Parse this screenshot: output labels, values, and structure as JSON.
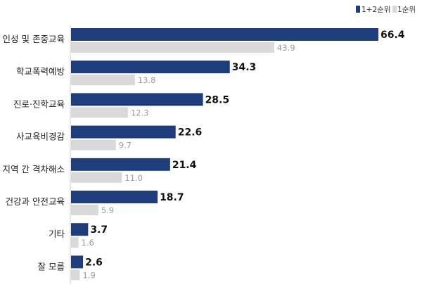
{
  "chart_data": {
    "type": "bar",
    "orientation": "horizontal",
    "categories": [
      "인성 및 존중교육",
      "학교폭력예방",
      "진로·진학교육",
      "사교육비경감",
      "지역 간 격차해소",
      "건강과 안전교육",
      "기타",
      "잘 모름"
    ],
    "series": [
      {
        "name": "1+2순위",
        "color": "#1f3d7a",
        "values": [
          66.4,
          34.3,
          28.5,
          22.6,
          21.4,
          18.7,
          3.7,
          2.6
        ],
        "labels": [
          "66.4",
          "34.3",
          "28.5",
          "22.6",
          "21.4",
          "18.7",
          "3.7",
          "2.6"
        ]
      },
      {
        "name": "1순위",
        "color": "#d9d9d9",
        "values": [
          43.9,
          13.8,
          12.3,
          9.7,
          11.0,
          5.9,
          1.6,
          1.9
        ],
        "labels": [
          "43.9",
          "13.8",
          "12.3",
          "9.7",
          "11.0",
          "5.9",
          "1.6",
          "1.9"
        ]
      }
    ],
    "xlim": [
      0,
      66.4
    ],
    "grid": false,
    "legend_position": "top-right"
  }
}
